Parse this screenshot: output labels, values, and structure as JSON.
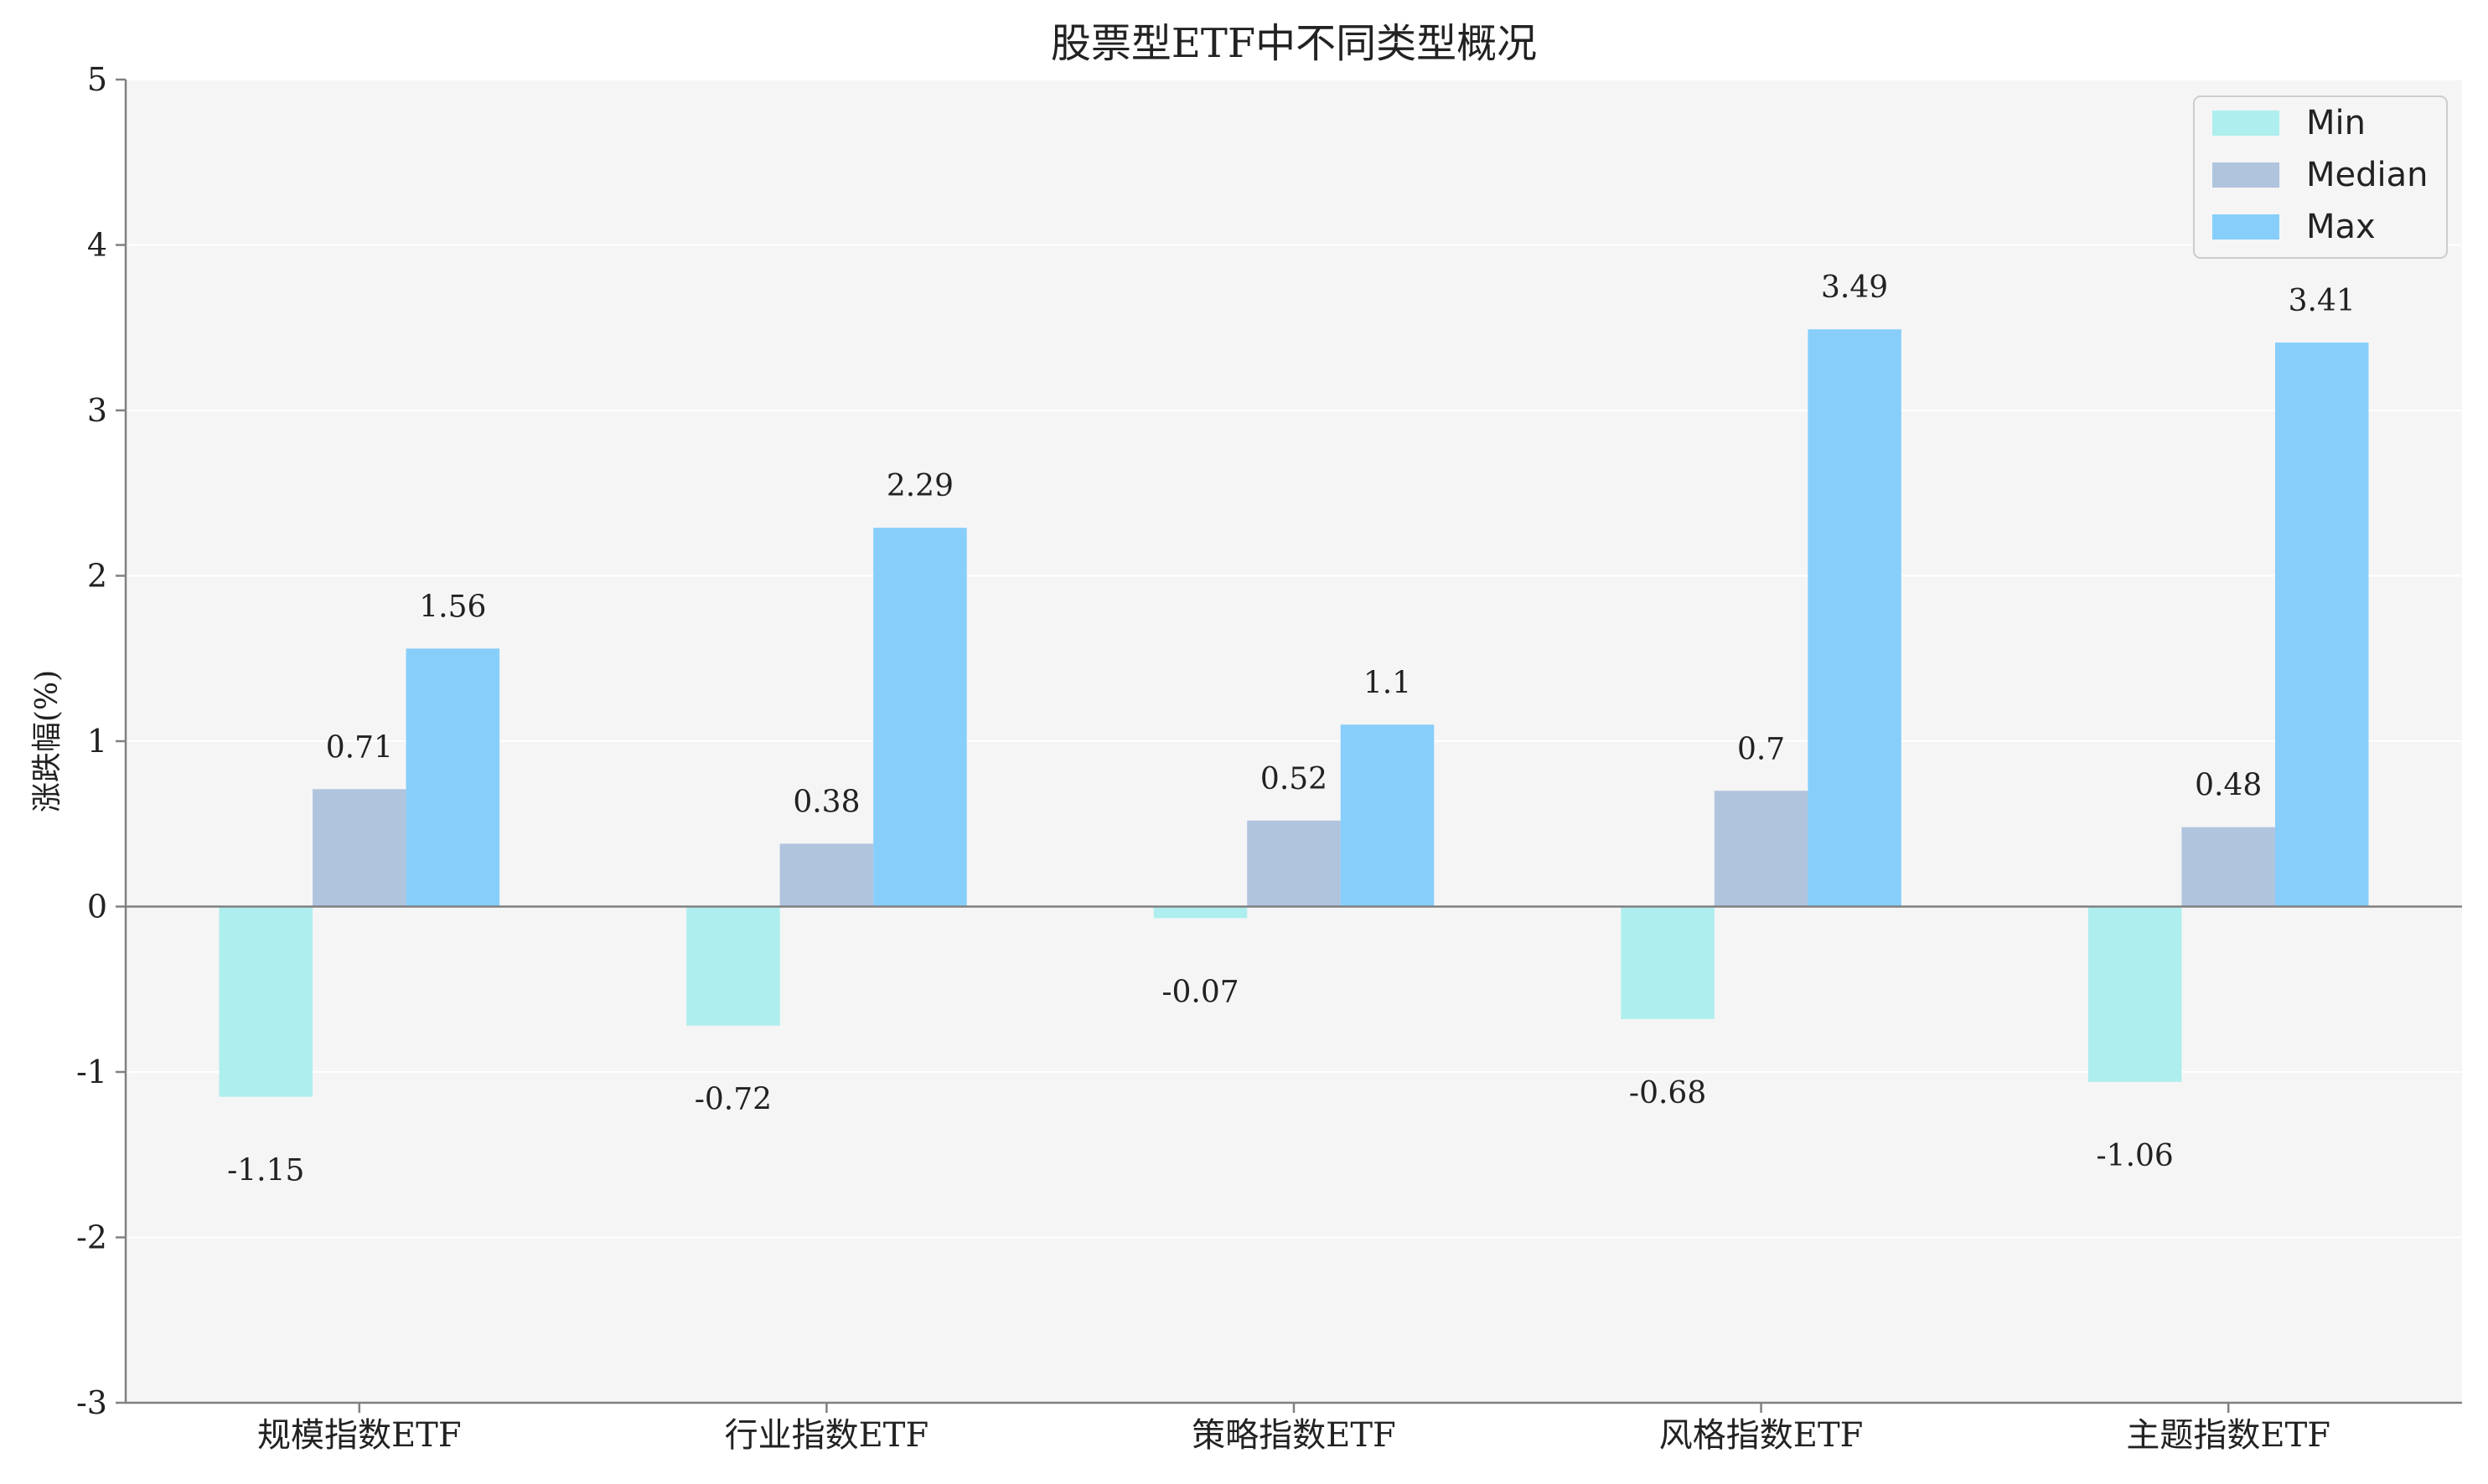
{
  "chart_data": {
    "type": "bar",
    "title": "股票型ETF中不同类型概况",
    "xlabel": "",
    "ylabel": "涨跌幅(%)",
    "ylim": [
      -3,
      5
    ],
    "yticks": [
      -3,
      -2,
      -1,
      0,
      1,
      2,
      3,
      4,
      5
    ],
    "grid": true,
    "legend_position": "top-right",
    "categories": [
      "规模指数ETF",
      "行业指数ETF",
      "策略指数ETF",
      "风格指数ETF",
      "主题指数ETF"
    ],
    "series": [
      {
        "name": "Min",
        "color": "#AEEEEE",
        "values": [
          -1.15,
          -0.72,
          -0.07,
          -0.68,
          -1.06
        ],
        "labels": [
          "-1.15",
          "-0.72",
          "-0.07",
          "-0.68",
          "-1.06"
        ]
      },
      {
        "name": "Median",
        "color": "#B0C4DE",
        "values": [
          0.71,
          0.38,
          0.52,
          0.7,
          0.48
        ],
        "labels": [
          "0.71",
          "0.38",
          "0.52",
          "0.7",
          "0.48"
        ]
      },
      {
        "name": "Max",
        "color": "#87CEFA",
        "values": [
          1.56,
          2.29,
          1.1,
          3.49,
          3.41
        ],
        "labels": [
          "1.56",
          "2.29",
          "1.1",
          "3.49",
          "3.41"
        ]
      }
    ]
  }
}
